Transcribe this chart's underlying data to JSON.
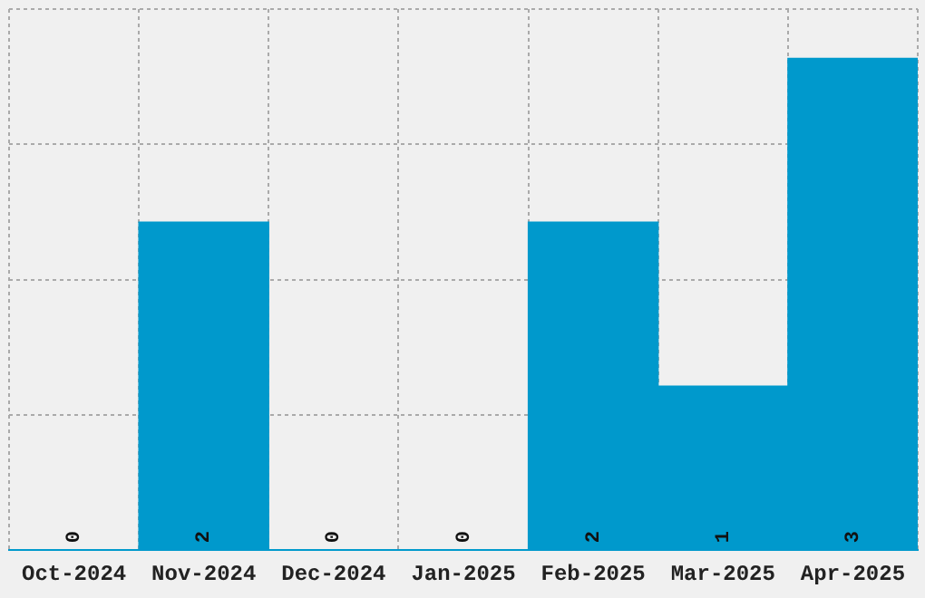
{
  "chart_data": {
    "type": "bar",
    "categories": [
      "Oct-2024",
      "Nov-2024",
      "Dec-2024",
      "Jan-2025",
      "Feb-2025",
      "Mar-2025",
      "Apr-2025"
    ],
    "values": [
      0,
      2,
      0,
      0,
      2,
      1,
      3
    ],
    "color": "#0099cc",
    "ylim": [
      0,
      3.3
    ],
    "yticks": [
      {
        "value": 0,
        "label": null
      },
      {
        "value": 0.825,
        "label": null
      },
      {
        "value": 1.65,
        "label": null
      },
      {
        "value": 2.475,
        "label": null
      },
      {
        "value": 3.3,
        "label": null
      }
    ],
    "grid": true,
    "data_labels": true,
    "tick_labels": "x"
  }
}
